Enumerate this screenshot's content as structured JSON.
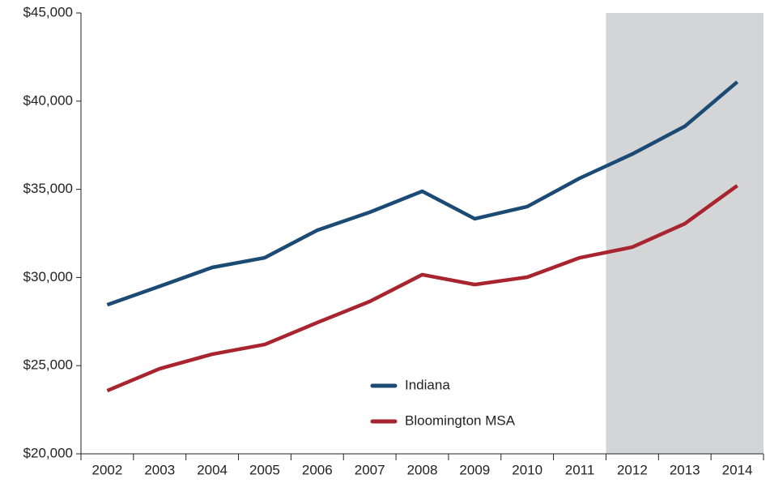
{
  "chart_data": {
    "type": "line",
    "categories": [
      "2002",
      "2003",
      "2004",
      "2005",
      "2006",
      "2007",
      "2008",
      "2009",
      "2010",
      "2011",
      "2012",
      "2013",
      "2014"
    ],
    "series": [
      {
        "name": "Indiana",
        "color": "#1b4a74",
        "values": [
          28450,
          29500,
          30570,
          31120,
          32680,
          33700,
          34890,
          33330,
          34020,
          35630,
          37000,
          38570,
          41090
        ]
      },
      {
        "name": "Bloomington MSA",
        "color": "#a8242f",
        "values": [
          23580,
          24830,
          25650,
          26200,
          27440,
          28640,
          30160,
          29600,
          30020,
          31120,
          31720,
          33050,
          35210
        ]
      }
    ],
    "ylim": [
      20000,
      45000
    ],
    "yticks": [
      {
        "value": 20000,
        "label": "$20,000"
      },
      {
        "value": 25000,
        "label": "$25,000"
      },
      {
        "value": 30000,
        "label": "$30,000"
      },
      {
        "value": 35000,
        "label": "$35,000"
      },
      {
        "value": 40000,
        "label": "$40,000"
      },
      {
        "value": 45000,
        "label": "$45,000"
      }
    ],
    "grid": false,
    "legend": "lower center",
    "highlight": {
      "from": "2012",
      "to": "2014",
      "color": "#d4d5d7"
    }
  }
}
